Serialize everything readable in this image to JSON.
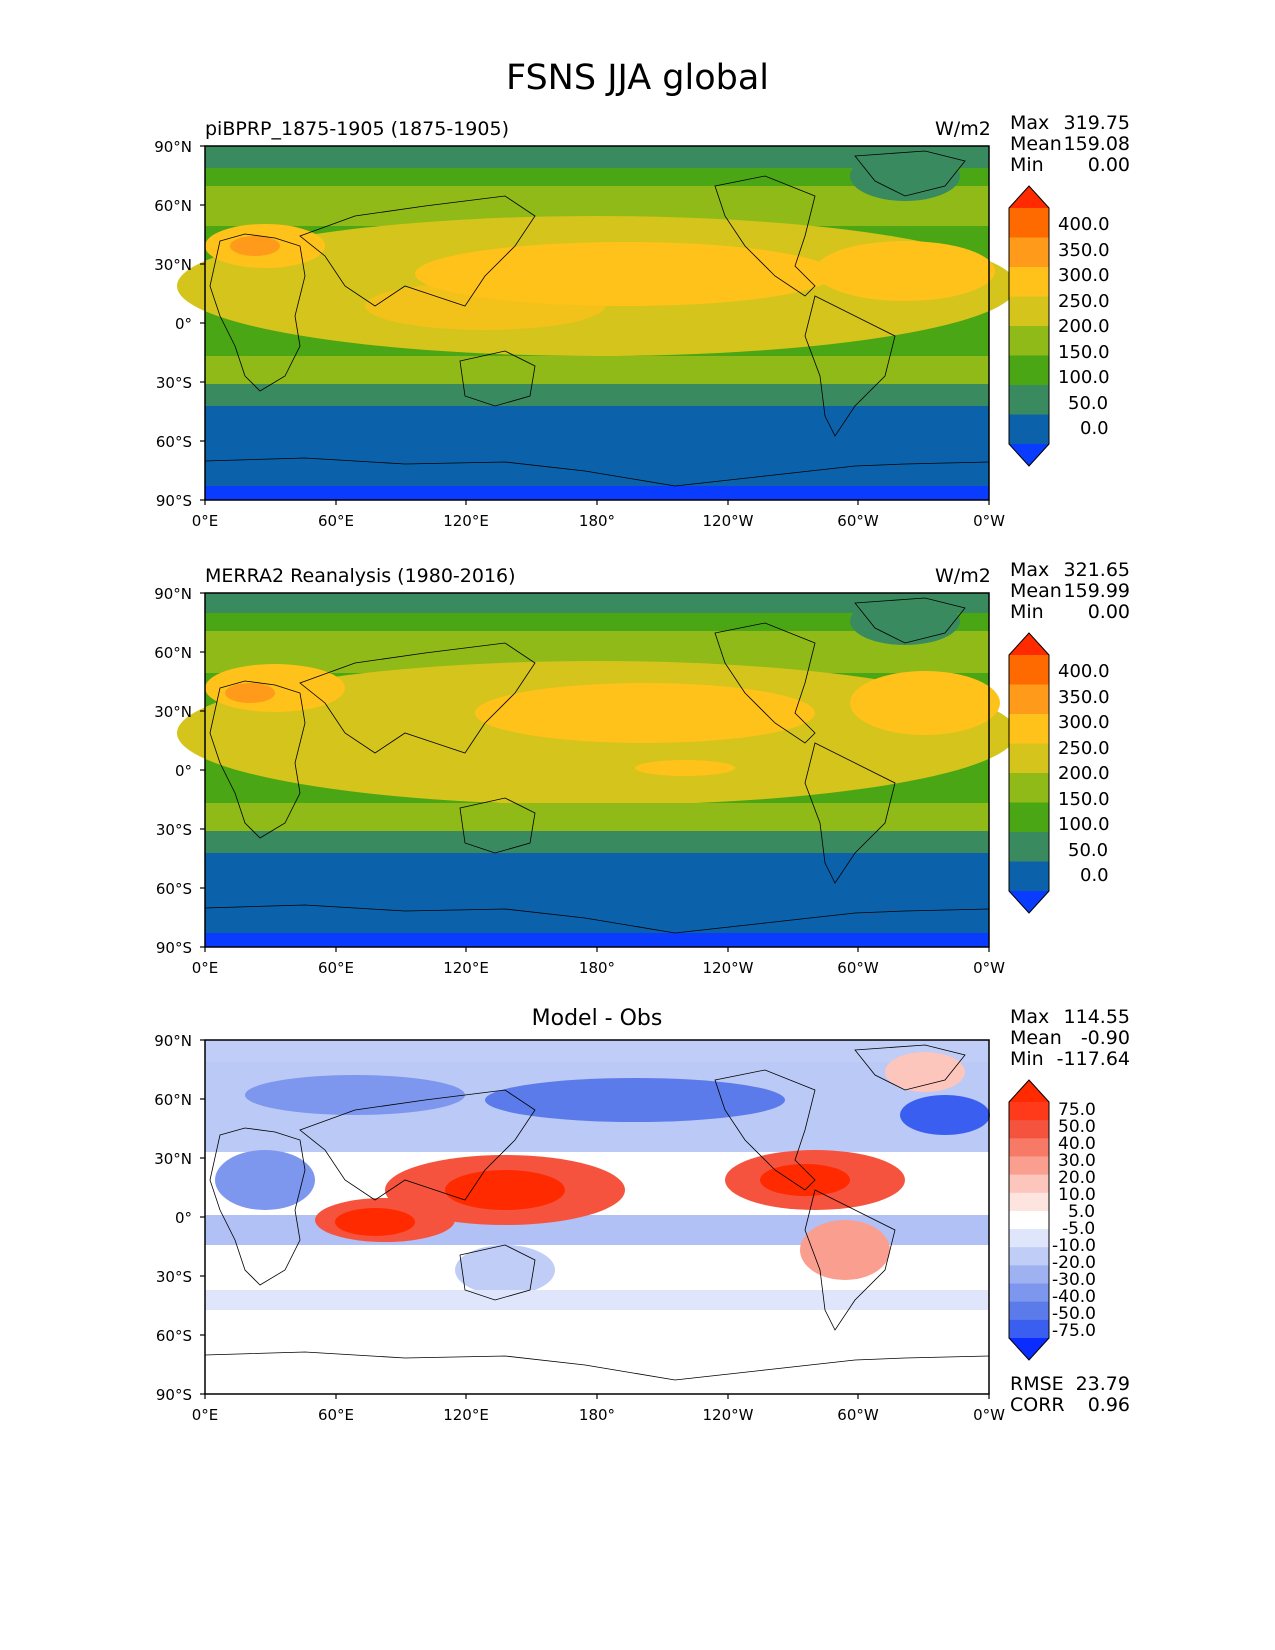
{
  "suptitle": "FSNS JJA global",
  "axes": {
    "lat_ticks": [
      "90°N",
      "60°N",
      "30°N",
      "0°",
      "30°S",
      "60°S",
      "90°S"
    ],
    "lon_ticks": [
      "0°E",
      "60°E",
      "120°E",
      "180°",
      "120°W",
      "60°W",
      "0°W"
    ]
  },
  "panels": [
    {
      "id": "model",
      "title": "piBPRP_1875-1905 (1875-1905)",
      "units": "W/m2",
      "stats": {
        "max_label": "Max",
        "max": "319.75",
        "mean_label": "Mean",
        "mean": "159.08",
        "min_label": "Min",
        "min": "0.00"
      },
      "colorbar": {
        "labels": [
          "400.0",
          "350.0",
          "300.0",
          "250.0",
          "200.0",
          "150.0",
          "100.0",
          "50.0",
          "0.0"
        ],
        "colors": [
          "#ff2a00",
          "#ff6a00",
          "#ff9a1a",
          "#ffc21a",
          "#d4c41c",
          "#8fba18",
          "#4aa614",
          "#3a8a60",
          "#0b62aa",
          "#0a3cff"
        ]
      }
    },
    {
      "id": "obs",
      "title": "MERRA2 Reanalysis (1980-2016)",
      "units": "W/m2",
      "stats": {
        "max_label": "Max",
        "max": "321.65",
        "mean_label": "Mean",
        "mean": "159.99",
        "min_label": "Min",
        "min": "0.00"
      },
      "colorbar": {
        "labels": [
          "400.0",
          "350.0",
          "300.0",
          "250.0",
          "200.0",
          "150.0",
          "100.0",
          "50.0",
          "0.0"
        ],
        "colors": [
          "#ff2a00",
          "#ff6a00",
          "#ff9a1a",
          "#ffc21a",
          "#d4c41c",
          "#8fba18",
          "#4aa614",
          "#3a8a60",
          "#0b62aa",
          "#0a3cff"
        ]
      }
    },
    {
      "id": "diff",
      "title": "Model - Obs",
      "units": "",
      "stats": {
        "max_label": "Max",
        "max": "114.55",
        "mean_label": "Mean",
        "mean": "-0.90",
        "min_label": "Min",
        "min": "-117.64"
      },
      "colorbar": {
        "labels": [
          "75.0",
          "50.0",
          "40.0",
          "30.0",
          "20.0",
          "10.0",
          "5.0",
          "-5.0",
          "-10.0",
          "-20.0",
          "-30.0",
          "-40.0",
          "-50.0",
          "-75.0"
        ],
        "colors": [
          "#ff2a00",
          "#ff3a1a",
          "#f5533e",
          "#f77a66",
          "#fa9f8f",
          "#fcc6bc",
          "#fde4de",
          "#ffffff",
          "#dfe6fb",
          "#bfcdf7",
          "#9eb2f2",
          "#7d96ee",
          "#5b7bea",
          "#3a5ff0",
          "#0a2cff"
        ]
      },
      "rmse_label": "RMSE",
      "rmse": "23.79",
      "corr_label": "CORR",
      "corr": "0.96"
    }
  ]
}
